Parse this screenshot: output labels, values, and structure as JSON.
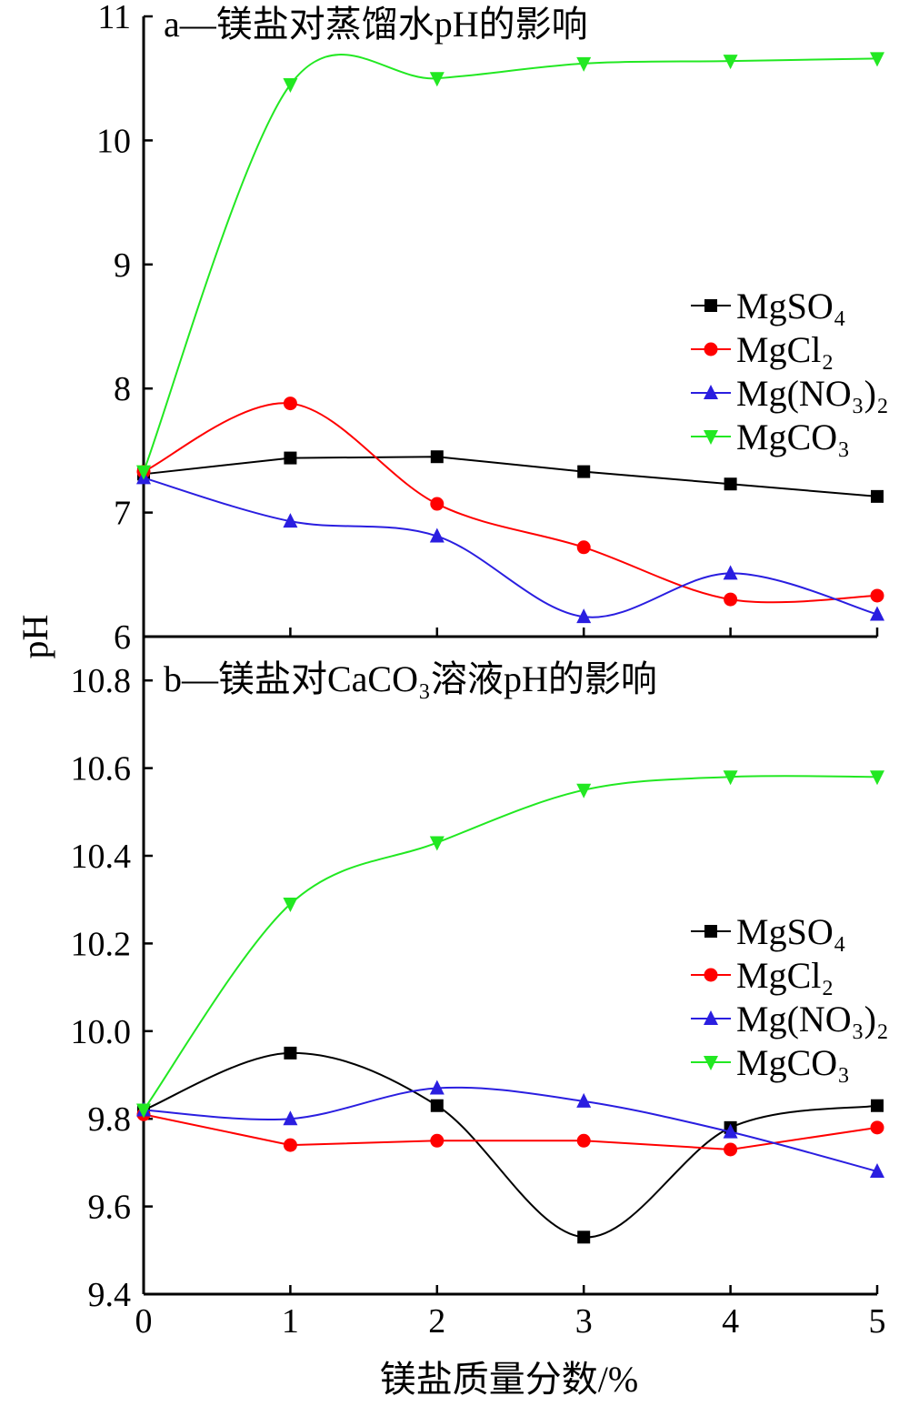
{
  "chart_data": {
    "type": "line",
    "xlabel": "镁盐质量分数/%",
    "ylabel": "pH",
    "x_ticks": [
      0,
      1,
      2,
      3,
      4,
      5
    ],
    "xlim": [
      0,
      5
    ],
    "panels": [
      {
        "id": "a",
        "title": "a—镁盐对蒸馏水pH的影响",
        "ylim": [
          6,
          11
        ],
        "y_ticks": [
          6,
          7,
          8,
          9,
          10,
          11
        ],
        "legend": [
          "MgSO₄",
          "MgCl₂",
          "Mg(NO₃)₂",
          "MgCO₃"
        ],
        "series": [
          {
            "name": "MgSO₄",
            "color": "#000000",
            "marker": "square",
            "x": [
              0,
              1,
              2,
              3,
              4,
              5
            ],
            "y": [
              7.31,
              7.44,
              7.45,
              7.33,
              7.23,
              7.13
            ]
          },
          {
            "name": "MgCl₂",
            "color": "#ff0000",
            "marker": "circle",
            "x": [
              0,
              1,
              2,
              3,
              4,
              5
            ],
            "y": [
              7.33,
              7.88,
              7.07,
              6.72,
              6.3,
              6.33
            ]
          },
          {
            "name": "Mg(NO₃)₂",
            "color": "#2a1ee0",
            "marker": "triangle-up",
            "x": [
              0,
              1,
              2,
              3,
              4,
              5
            ],
            "y": [
              7.28,
              6.93,
              6.81,
              6.16,
              6.51,
              6.18
            ]
          },
          {
            "name": "MgCO₃",
            "color": "#22e822",
            "marker": "triangle-down",
            "x": [
              0,
              1,
              2,
              3,
              4,
              5
            ],
            "y": [
              7.33,
              10.45,
              10.5,
              10.62,
              10.64,
              10.66
            ]
          }
        ]
      },
      {
        "id": "b",
        "title": "b—镁盐对CaCO₃溶液pH的影响",
        "ylim": [
          9.4,
          10.9
        ],
        "y_ticks": [
          9.4,
          9.6,
          9.8,
          10.0,
          10.2,
          10.4,
          10.6,
          10.8
        ],
        "y_tick_labels": [
          "9.4",
          "9.6",
          "9.8",
          "10.0",
          "10.2",
          "10.4",
          "10.6",
          "10.8"
        ],
        "legend": [
          "MgSO₄",
          "MgCl₂",
          "Mg(NO₃)₂",
          "MgCO₃"
        ],
        "series": [
          {
            "name": "MgSO₄",
            "color": "#000000",
            "marker": "square",
            "x": [
              0,
              1,
              2,
              3,
              4,
              5
            ],
            "y": [
              9.82,
              9.95,
              9.83,
              9.53,
              9.78,
              9.83
            ]
          },
          {
            "name": "MgCl₂",
            "color": "#ff0000",
            "marker": "circle",
            "x": [
              0,
              1,
              2,
              3,
              4,
              5
            ],
            "y": [
              9.81,
              9.74,
              9.75,
              9.75,
              9.73,
              9.78
            ]
          },
          {
            "name": "Mg(NO₃)₂",
            "color": "#2a1ee0",
            "marker": "triangle-up",
            "x": [
              0,
              1,
              2,
              3,
              4,
              5
            ],
            "y": [
              9.82,
              9.8,
              9.87,
              9.84,
              9.77,
              9.68
            ]
          },
          {
            "name": "MgCO₃",
            "color": "#22e822",
            "marker": "triangle-down",
            "x": [
              0,
              1,
              2,
              3,
              4,
              5
            ],
            "y": [
              9.82,
              10.29,
              10.43,
              10.55,
              10.58,
              10.58
            ]
          }
        ]
      }
    ]
  }
}
